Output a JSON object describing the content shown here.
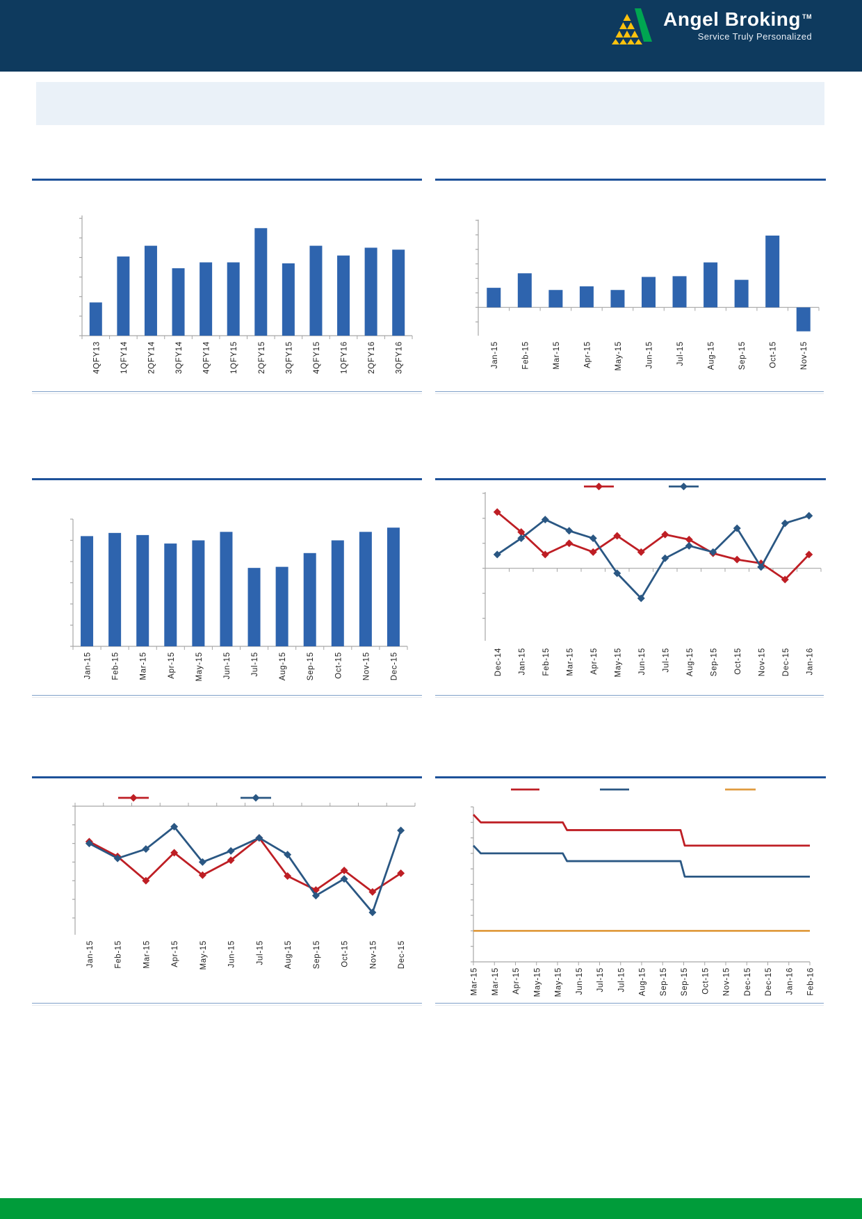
{
  "header": {
    "brand": "Angel Broking",
    "trademark": "TM",
    "tagline": "Service Truly Personalized"
  },
  "colors": {
    "header_bg": "#0E3A5E",
    "banner_bg": "#EAF1F8",
    "footer_bg": "#009C3A",
    "rule_blue": "#1D5199",
    "divider_blue": "#7E9FC8",
    "axis_gray": "#A6A6A6",
    "label_text": "#1C1C1C",
    "bar_blue": "#2E64AE",
    "line_red": "#BE1E24",
    "line_navy": "#2A5783",
    "line_orange": "#E09B3F",
    "logo_green": "#00A551",
    "logo_yellow": "#FFC20E"
  },
  "chart_data": [
    {
      "id": "top-left-quarterly-bars",
      "type": "bar",
      "title": "",
      "categories": [
        "4QFY13",
        "1QFY14",
        "2QFY14",
        "3QFY14",
        "4QFY14",
        "1QFY15",
        "2QFY15",
        "3QFY15",
        "4QFY15",
        "1QFY16",
        "2QFY16",
        "3QFY16"
      ],
      "values": [
        1.7,
        4.05,
        4.6,
        3.45,
        3.75,
        3.75,
        5.5,
        3.7,
        4.6,
        4.1,
        4.5,
        4.4
      ],
      "ylim": [
        0,
        6.15
      ],
      "ytick": 1,
      "baseline": 0,
      "x_mode": "center",
      "tick_dir": "down",
      "bar_color": "bar_blue",
      "y_axis_labels_visible": false
    },
    {
      "id": "top-right-monthly-bars",
      "type": "bar",
      "title": "",
      "categories": [
        "Jan-15",
        "Feb-15",
        "Mar-15",
        "Apr-15",
        "May-15",
        "Jun-15",
        "Jul-15",
        "Aug-15",
        "Sep-15",
        "Oct-15",
        "Nov-15"
      ],
      "values": [
        1.35,
        2.35,
        1.2,
        1.45,
        1.2,
        2.1,
        2.15,
        3.1,
        1.9,
        4.95,
        -1.65
      ],
      "ylim": [
        -1.95,
        6.05
      ],
      "ytick": 1,
      "baseline": 0,
      "x_mode": "center",
      "tick_dir": "down",
      "bar_color": "bar_blue",
      "y_axis_labels_visible": false
    },
    {
      "id": "middle-left-monthly-bars",
      "type": "bar",
      "title": "",
      "categories": [
        "Jan-15",
        "Feb-15",
        "Mar-15",
        "Apr-15",
        "May-15",
        "Jun-15",
        "Jul-15",
        "Aug-15",
        "Sep-15",
        "Oct-15",
        "Nov-15",
        "Dec-15"
      ],
      "values": [
        5.2,
        5.35,
        5.25,
        4.85,
        5.0,
        5.4,
        3.7,
        3.75,
        4.4,
        5.0,
        5.4,
        5.6
      ],
      "ylim": [
        0,
        6.0
      ],
      "ytick": 1,
      "baseline": 0,
      "x_mode": "center",
      "tick_dir": "down",
      "bar_color": "bar_blue",
      "y_axis_labels_visible": false
    },
    {
      "id": "middle-right-two-line",
      "type": "line",
      "title": "",
      "categories": [
        "Dec-14",
        "Jan-15",
        "Feb-15",
        "Mar-15",
        "Apr-15",
        "May-15",
        "Jun-15",
        "Jul-15",
        "Aug-15",
        "Sep-15",
        "Oct-15",
        "Nov-15",
        "Dec-15",
        "Jan-16"
      ],
      "series": [
        {
          "label": "",
          "color": "line_red",
          "marker": "diamond",
          "values": [
            2.25,
            1.45,
            0.55,
            1.0,
            0.65,
            1.3,
            0.65,
            1.35,
            1.15,
            0.6,
            0.35,
            0.2,
            -0.45,
            0.55
          ]
        },
        {
          "label": "",
          "color": "line_navy",
          "marker": "diamond",
          "values": [
            0.55,
            1.2,
            1.95,
            1.5,
            1.2,
            -0.2,
            -1.2,
            0.4,
            0.9,
            0.65,
            1.6,
            0.05,
            1.8,
            2.1
          ]
        }
      ],
      "ylim": [
        -2.9,
        3.05
      ],
      "ytick": 1,
      "baseline": 0,
      "x_mode": "center",
      "tick_dir": "down",
      "legend": {
        "position": "top",
        "labels_visible": false
      },
      "y_axis_labels_visible": false
    },
    {
      "id": "bottom-left-two-line",
      "type": "line",
      "title": "",
      "categories": [
        "Jan-15",
        "Feb-15",
        "Mar-15",
        "Apr-15",
        "May-15",
        "Jun-15",
        "Jul-15",
        "Aug-15",
        "Sep-15",
        "Oct-15",
        "Nov-15",
        "Dec-15"
      ],
      "series": [
        {
          "label": "",
          "color": "line_red",
          "marker": "diamond",
          "values": [
            -1.9,
            -2.7,
            -4.0,
            -2.5,
            -3.7,
            -2.9,
            -1.7,
            -3.75,
            -4.5,
            -3.45,
            -4.6,
            -3.6
          ]
        },
        {
          "label": "",
          "color": "line_navy",
          "marker": "diamond",
          "values": [
            -2.0,
            -2.8,
            -2.3,
            -1.1,
            -3.0,
            -2.4,
            -1.7,
            -2.6,
            -4.8,
            -3.9,
            -5.7,
            -1.3
          ]
        }
      ],
      "ylim": [
        -6.9,
        0
      ],
      "ytick": 1,
      "baseline": 0,
      "x_mode": "center",
      "tick_dir": "up",
      "legend": {
        "position": "top",
        "labels_visible": false
      },
      "y_axis_labels_visible": false
    },
    {
      "id": "bottom-right-policy-steps",
      "type": "line",
      "title": "",
      "categories": [
        "Mar-15",
        "Mar-15",
        "Apr-15",
        "May-15",
        "May-15",
        "Jun-15",
        "Jul-15",
        "Jul-15",
        "Aug-15",
        "Sep-15",
        "Sep-15",
        "Oct-15",
        "Nov-15",
        "Dec-15",
        "Dec-15",
        "Jan-16",
        "Feb-16"
      ],
      "series": [
        {
          "label": "",
          "color": "line_red",
          "marker": null,
          "points": [
            [
              0,
              7.75
            ],
            [
              0.35,
              7.5
            ],
            [
              4.25,
              7.5
            ],
            [
              4.45,
              7.25
            ],
            [
              9.85,
              7.25
            ],
            [
              10.05,
              6.75
            ],
            [
              16,
              6.75
            ]
          ]
        },
        {
          "label": "",
          "color": "line_navy",
          "marker": null,
          "points": [
            [
              0,
              6.75
            ],
            [
              0.35,
              6.5
            ],
            [
              4.25,
              6.5
            ],
            [
              4.45,
              6.25
            ],
            [
              9.85,
              6.25
            ],
            [
              10.05,
              5.75
            ],
            [
              16,
              5.75
            ]
          ]
        },
        {
          "label": "",
          "color": "line_orange",
          "marker": null,
          "points": [
            [
              0,
              4.0
            ],
            [
              16,
              4.0
            ]
          ]
        }
      ],
      "ylim": [
        3,
        8
      ],
      "ytick": 0.5,
      "baseline": 3,
      "x_mode": "edge",
      "tick_dir": "down",
      "legend": {
        "position": "top",
        "labels_visible": false
      },
      "y_axis_labels_visible": false
    }
  ]
}
